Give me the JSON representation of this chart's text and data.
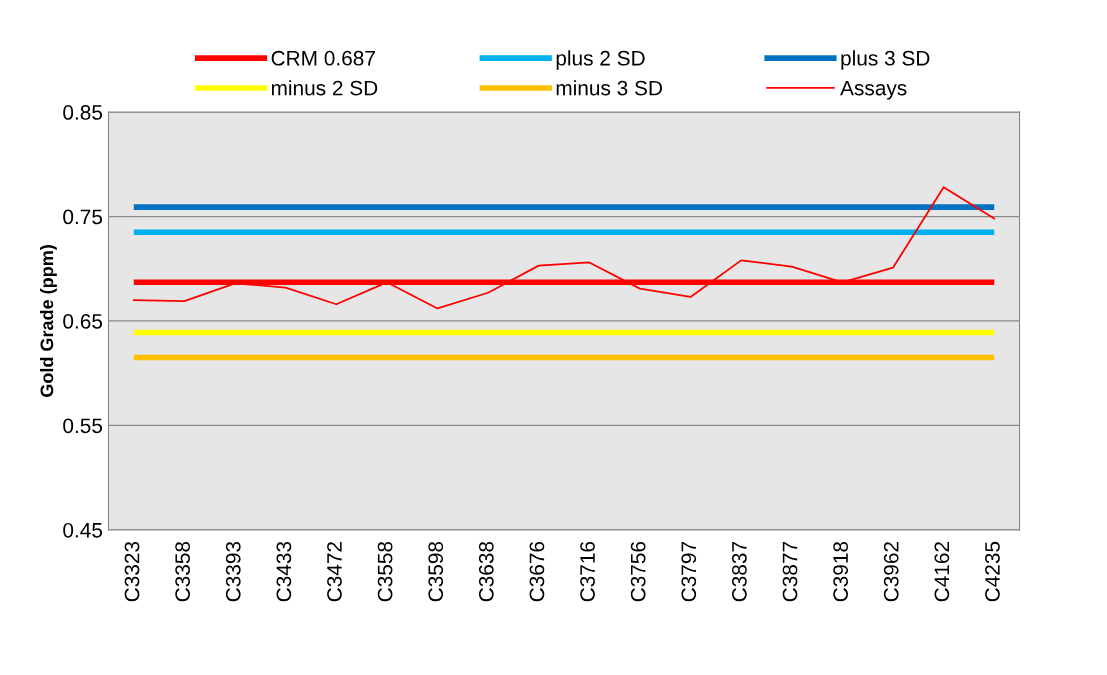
{
  "chart_data": {
    "type": "line",
    "ylabel": "Gold Grade (ppm)",
    "categories": [
      "C3323",
      "C3358",
      "C3393",
      "C3433",
      "C3472",
      "C3558",
      "C3598",
      "C3638",
      "C3676",
      "C3716",
      "C3756",
      "C3797",
      "C3837",
      "C3877",
      "C3918",
      "C3962",
      "C4162",
      "C4235"
    ],
    "series": [
      {
        "name": "CRM 0.687",
        "color": "#ff0000",
        "values": [
          0.687,
          0.687,
          0.687,
          0.687,
          0.687,
          0.687,
          0.687,
          0.687,
          0.687,
          0.687,
          0.687,
          0.687,
          0.687,
          0.687,
          0.687,
          0.687,
          0.687,
          0.687
        ]
      },
      {
        "name": "plus 2 SD",
        "color": "#00b0f0",
        "values": [
          0.735,
          0.735,
          0.735,
          0.735,
          0.735,
          0.735,
          0.735,
          0.735,
          0.735,
          0.735,
          0.735,
          0.735,
          0.735,
          0.735,
          0.735,
          0.735,
          0.735,
          0.735
        ]
      },
      {
        "name": "plus 3 SD",
        "color": "#0070c0",
        "values": [
          0.759,
          0.759,
          0.759,
          0.759,
          0.759,
          0.759,
          0.759,
          0.759,
          0.759,
          0.759,
          0.759,
          0.759,
          0.759,
          0.759,
          0.759,
          0.759,
          0.759,
          0.759
        ]
      },
      {
        "name": "minus 2 SD",
        "color": "#ffff00",
        "values": [
          0.639,
          0.639,
          0.639,
          0.639,
          0.639,
          0.639,
          0.639,
          0.639,
          0.639,
          0.639,
          0.639,
          0.639,
          0.639,
          0.639,
          0.639,
          0.639,
          0.639,
          0.639
        ]
      },
      {
        "name": "minus 3 SD",
        "color": "#ffc000",
        "values": [
          0.615,
          0.615,
          0.615,
          0.615,
          0.615,
          0.615,
          0.615,
          0.615,
          0.615,
          0.615,
          0.615,
          0.615,
          0.615,
          0.615,
          0.615,
          0.615,
          0.615,
          0.615
        ]
      },
      {
        "name": "Assays",
        "color": "#ff0000",
        "values": [
          0.67,
          0.669,
          0.686,
          0.682,
          0.666,
          0.687,
          0.662,
          0.677,
          0.703,
          0.706,
          0.681,
          0.673,
          0.708,
          0.702,
          0.687,
          0.701,
          0.778,
          0.748
        ]
      }
    ],
    "ylim": [
      0.45,
      0.85
    ],
    "yticks": [
      {
        "value": 0.45,
        "label": "0.45"
      },
      {
        "value": 0.55,
        "label": "0.55"
      },
      {
        "value": 0.65,
        "label": "0.65"
      },
      {
        "value": 0.75,
        "label": "0.75"
      },
      {
        "value": 0.85,
        "label": "0.85"
      }
    ],
    "grid": "y",
    "legend": "top",
    "line_style": "solid",
    "marker": "none"
  }
}
